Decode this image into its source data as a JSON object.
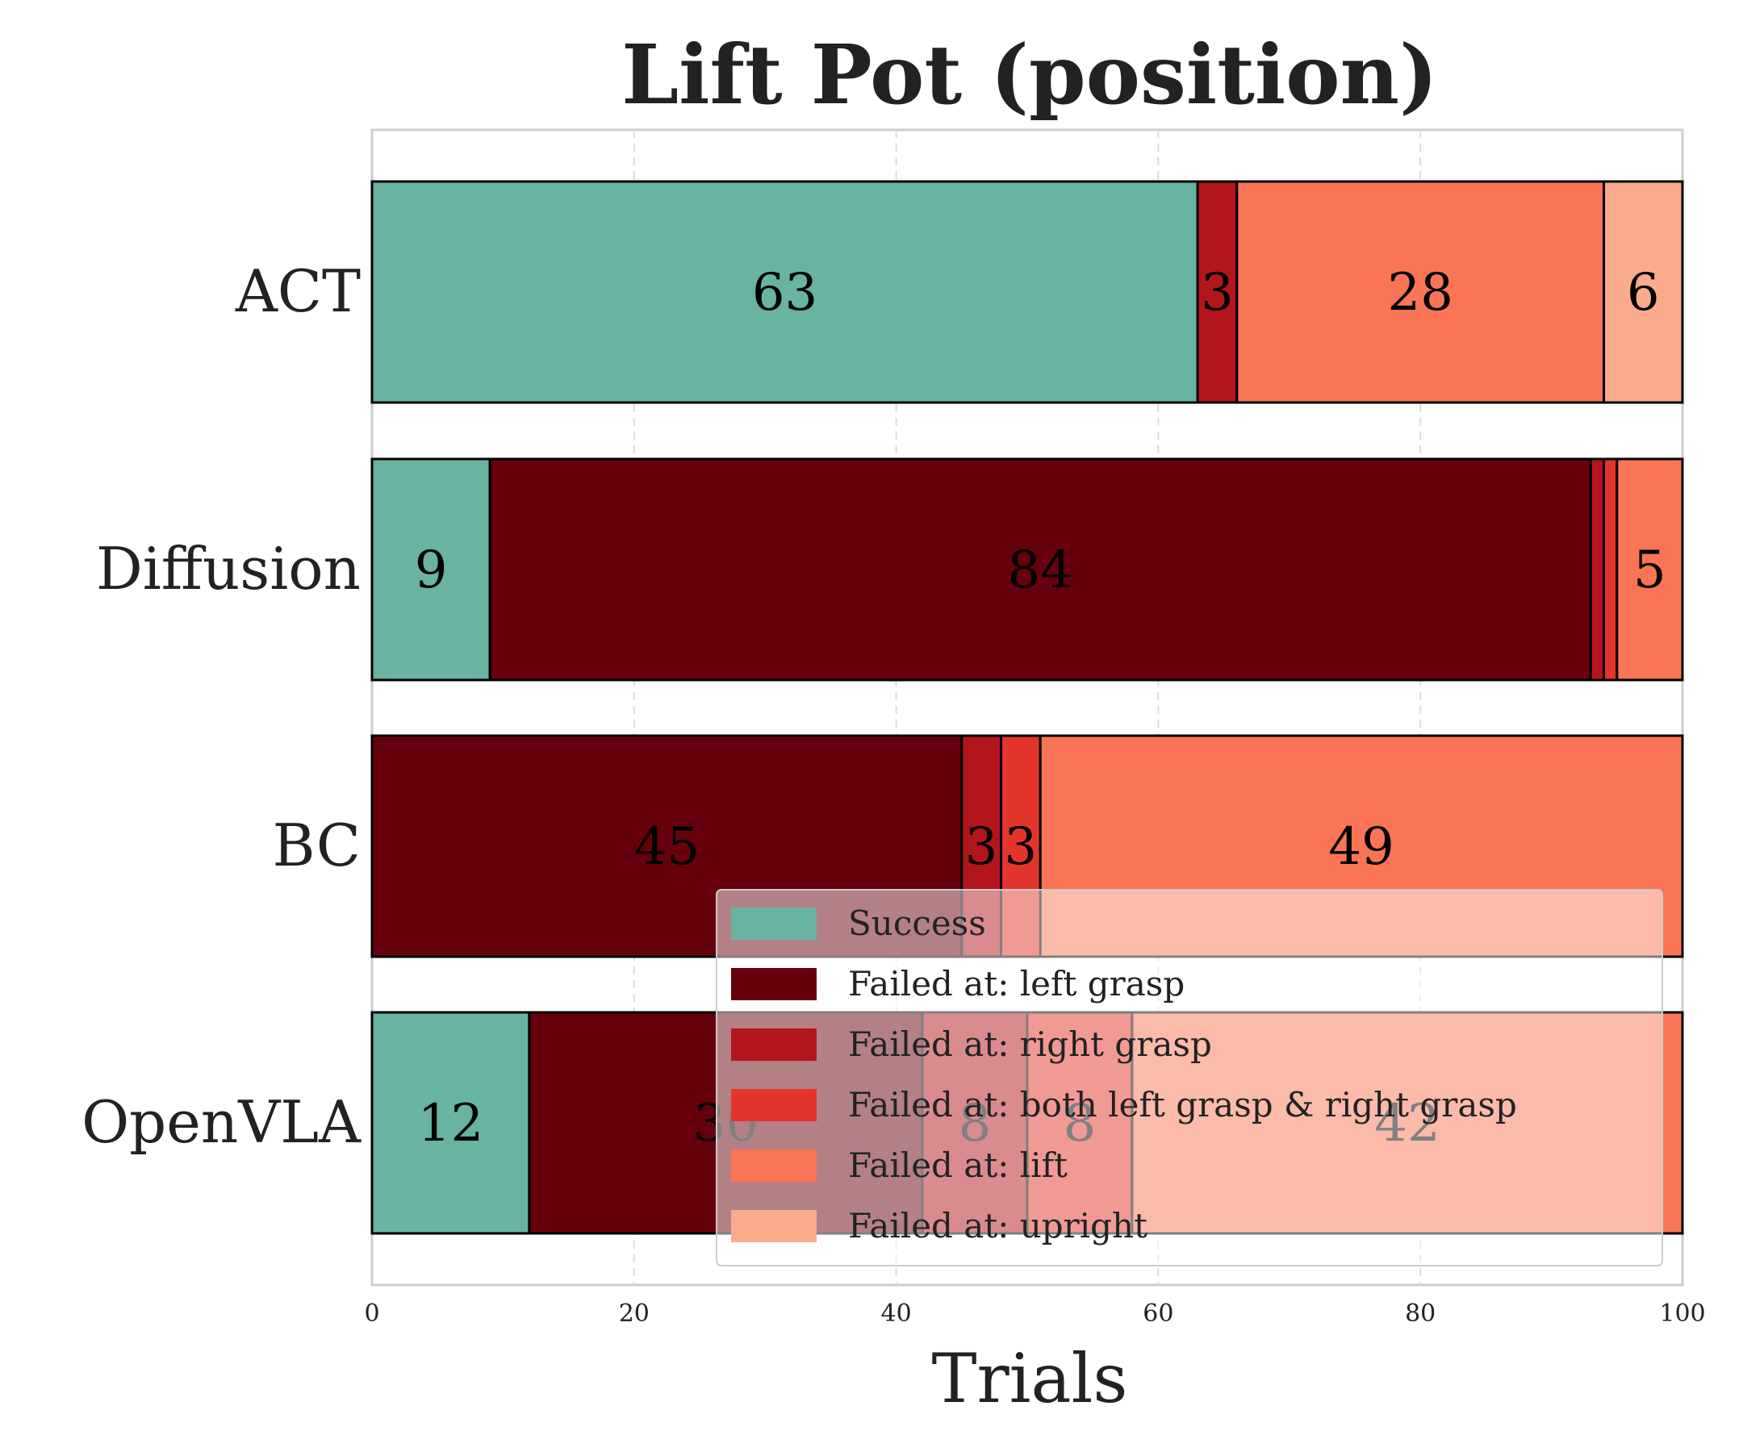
{
  "chart_data": {
    "type": "bar",
    "orientation": "horizontal",
    "stacked": true,
    "title": "Lift Pot (position)",
    "xlabel": "Trials",
    "ylabel": "",
    "xlim": [
      0,
      100
    ],
    "xticks": [
      "0",
      "20",
      "40",
      "60",
      "80",
      "100"
    ],
    "grid": true,
    "legend_position": "lower right",
    "categories": [
      "ACT",
      "Diffusion",
      "BC",
      "OpenVLA"
    ],
    "series": [
      {
        "name": "Success",
        "color": "#69b3a2",
        "values": [
          63,
          9,
          0,
          12
        ]
      },
      {
        "name": "Failed at: left grasp",
        "color": "#67000d",
        "values": [
          0,
          84,
          45,
          30
        ]
      },
      {
        "name": "Failed at: right grasp",
        "color": "#b2161c",
        "values": [
          3,
          1,
          3,
          8
        ]
      },
      {
        "name": "Failed at: both left grasp & right grasp",
        "color": "#e3352b",
        "values": [
          0,
          1,
          3,
          8
        ]
      },
      {
        "name": "Failed at: lift",
        "color": "#f97556",
        "values": [
          28,
          5,
          49,
          42
        ]
      },
      {
        "name": "Failed at: upright",
        "color": "#fbab8d",
        "values": [
          6,
          0,
          0,
          0
        ]
      }
    ],
    "data_labels": [
      [
        "63",
        "",
        "3",
        "",
        "28",
        "6"
      ],
      [
        "9",
        "84",
        "",
        "",
        "5",
        ""
      ],
      [
        "",
        "45",
        "3",
        "3",
        "49",
        ""
      ],
      [
        "12",
        "30",
        "8",
        "8",
        "42",
        ""
      ]
    ]
  }
}
